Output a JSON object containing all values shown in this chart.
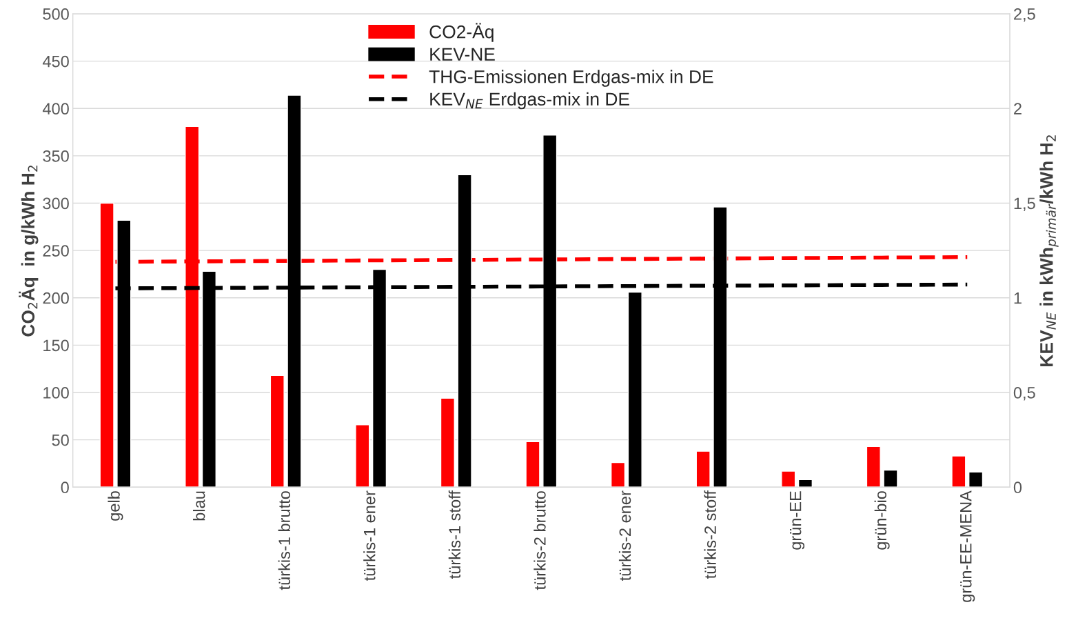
{
  "chart_data": {
    "type": "bar",
    "categories": [
      "gelb",
      "blau",
      "türkis-1 brutto",
      "türkis-1 ener",
      "türkis-1 stoff",
      "türkis-2 brutto",
      "türkis-2 ener",
      "türkis-2 stoff",
      "grün-EE",
      "grün-bio",
      "grün-EE-MENA"
    ],
    "ylabel": "CO$_{2}$Äq  in g/kWh H$_{2}$",
    "y2label": "KEV$_{NE}$ in kWh$_{primär}$/kWh H$_{2}$",
    "series": [
      {
        "name": "CO2-Äq",
        "color": "#ff0000",
        "values": [
          300,
          381,
          118,
          66,
          94,
          48,
          26,
          38,
          17,
          43,
          33
        ]
      },
      {
        "name": "KEV-NE",
        "color": "#000000",
        "axis": "y2",
        "values": [
          1.41,
          1.14,
          2.07,
          1.15,
          1.65,
          1.86,
          1.03,
          1.48,
          0.04,
          0.09,
          0.08
        ]
      },
      {
        "name": "THG-Emissionen Erdgas-mix in DE",
        "type": "line",
        "line_style": "dashed",
        "color": "#ff0000",
        "values": [
          238,
          238.5,
          239,
          239.5,
          240,
          240.5,
          241,
          241.5,
          242,
          242.5,
          243
        ]
      },
      {
        "name": "KEV$_{NE}$ Erdgas-mix in DE",
        "type": "line",
        "line_style": "dashed",
        "color": "#000000",
        "axis": "y2",
        "values": [
          1.05,
          1.052,
          1.054,
          1.056,
          1.058,
          1.06,
          1.062,
          1.064,
          1.066,
          1.068,
          1.07
        ]
      }
    ],
    "ylim": [
      0,
      500
    ],
    "yticks": [
      0,
      50,
      100,
      150,
      200,
      250,
      300,
      350,
      400,
      450,
      500
    ],
    "y2lim": [
      0,
      2.5
    ],
    "y2ticks": [
      0,
      {
        "value": 0.5,
        "label": "0,5"
      },
      1,
      {
        "value": 1.5,
        "label": "1,5"
      },
      2,
      {
        "value": 2.5,
        "label": "2,5"
      }
    ],
    "grid": "y",
    "legend": "top"
  }
}
